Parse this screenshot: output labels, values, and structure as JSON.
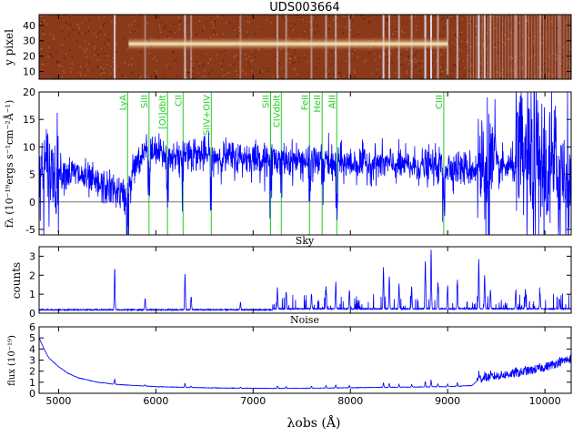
{
  "figure": {
    "title": "UDS003664",
    "xlabel": "λobs (Å)"
  },
  "chart_data": [
    {
      "type": "heatmap",
      "panel": "2d-spectrum",
      "title": "UDS003664",
      "ylabel": "y pixel",
      "xlim": [
        4800,
        10270
      ],
      "ylim": [
        5,
        47
      ],
      "yticks": [
        10,
        20,
        30,
        40
      ],
      "trace_row": 28,
      "trace_start": 5720,
      "trace_end": 9000,
      "colors": {
        "background": "#8a3a1a",
        "trace": "#fff2c0",
        "sky": "#e8e8ff"
      }
    },
    {
      "type": "line",
      "panel": "flux-1d",
      "ylabel": "fλ (10⁻¹⁹ergs s⁻¹cm⁻²Å⁻¹)",
      "xlim": [
        4800,
        10270
      ],
      "ylim": [
        -6,
        20
      ],
      "yticks": [
        -5,
        0,
        5,
        10,
        15,
        20
      ],
      "zero_line": 0,
      "series": [
        {
          "color": "#0000ff",
          "x": [
            4800,
            5000,
            5200,
            5400,
            5600,
            5700,
            5800,
            6000,
            6100,
            6200,
            6300,
            6500,
            6800,
            7000,
            7200,
            7500,
            7800,
            8000,
            8300,
            8600,
            8900,
            9200,
            9500,
            9800,
            10000,
            10270
          ],
          "y": [
            5.0,
            5.5,
            5.0,
            3.0,
            2.0,
            0.5,
            8.0,
            9.0,
            8.5,
            8.0,
            9.0,
            8.5,
            8.0,
            8.0,
            7.8,
            7.5,
            7.2,
            7.0,
            7.0,
            6.5,
            6.5,
            6.0,
            6.0,
            7.0,
            6.0,
            5.0
          ]
        }
      ],
      "lines": [
        {
          "label": "LyA",
          "x": 5710
        },
        {
          "label": "SiII",
          "x": 5930
        },
        {
          "label": "[OI]dblt",
          "x": 6120
        },
        {
          "label": "CII",
          "x": 6280
        },
        {
          "label": "SiIV+OIV",
          "x": 6570
        },
        {
          "label": "SiII",
          "x": 7180
        },
        {
          "label": "CIVdblt",
          "x": 7290
        },
        {
          "label": "FeII",
          "x": 7580
        },
        {
          "label": "HeII",
          "x": 7710
        },
        {
          "label": "AlII",
          "x": 7860
        },
        {
          "label": "CIII",
          "x": 8960
        }
      ]
    },
    {
      "type": "line",
      "panel": "sky",
      "title": "Sky",
      "ylabel": "counts",
      "xlim": [
        4800,
        10270
      ],
      "ylim": [
        0,
        3.5
      ],
      "yticks": [
        0,
        1,
        2,
        3
      ],
      "series": [
        {
          "color": "#0000ff",
          "continuum": 0.15,
          "peaks": [
            [
              5577,
              2.2
            ],
            [
              5890,
              0.6
            ],
            [
              6300,
              1.9
            ],
            [
              6363,
              0.7
            ],
            [
              6870,
              0.4
            ],
            [
              7250,
              1.1
            ],
            [
              7340,
              0.9
            ],
            [
              7600,
              0.8
            ],
            [
              7750,
              1.2
            ],
            [
              7850,
              1.4
            ],
            [
              7990,
              1.0
            ],
            [
              8340,
              2.2
            ],
            [
              8400,
              1.7
            ],
            [
              8500,
              1.3
            ],
            [
              8630,
              1.2
            ],
            [
              8770,
              2.5
            ],
            [
              8830,
              3.1
            ],
            [
              8900,
              1.4
            ],
            [
              9000,
              1.2
            ],
            [
              9100,
              1.5
            ],
            [
              9320,
              2.6
            ],
            [
              9380,
              1.8
            ],
            [
              9440,
              1.0
            ],
            [
              9700,
              0.9
            ],
            [
              9800,
              1.0
            ],
            [
              9950,
              0.8
            ],
            [
              10150,
              0.5
            ]
          ]
        }
      ]
    },
    {
      "type": "line",
      "panel": "noise",
      "title": "Noise",
      "ylabel": "flux (10⁻¹⁹)",
      "xlim": [
        4800,
        10270
      ],
      "ylim": [
        0,
        6
      ],
      "yticks": [
        0,
        1,
        2,
        3,
        4,
        5,
        6
      ],
      "series": [
        {
          "color": "#0000ff",
          "x": [
            4800,
            4850,
            4900,
            5000,
            5100,
            5200,
            5400,
            5600,
            6000,
            6500,
            7000,
            7500,
            8000,
            8500,
            9000,
            9250,
            9300,
            9500,
            9800,
            10000,
            10270
          ],
          "y": [
            5.0,
            4.0,
            3.2,
            2.4,
            1.8,
            1.4,
            1.0,
            0.8,
            0.6,
            0.5,
            0.45,
            0.45,
            0.5,
            0.55,
            0.6,
            0.7,
            1.1,
            1.4,
            1.8,
            2.2,
            3.0
          ]
        }
      ]
    }
  ]
}
